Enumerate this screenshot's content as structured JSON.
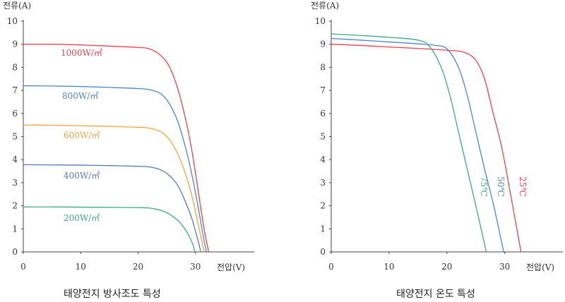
{
  "chart_data": [
    {
      "type": "line",
      "title": "태양전지 방사조도 특성",
      "xlabel": "전압(V)",
      "ylabel": "전류(A)",
      "xlim": [
        0,
        40
      ],
      "ylim": [
        0,
        10
      ],
      "xticks": [
        "0",
        "10",
        "20",
        "30"
      ],
      "yticks": [
        "0",
        "1",
        "2",
        "3",
        "4",
        "5",
        "6",
        "7",
        "8",
        "9",
        "10"
      ],
      "grid": false,
      "series": [
        {
          "name": "1000W/㎡",
          "color": "#e8414e",
          "x": [
            0,
            5,
            10,
            15,
            20,
            22,
            24,
            25.5,
            27,
            28.5,
            29.5,
            30.5,
            31.5,
            32.3
          ],
          "y": [
            9.0,
            9.0,
            8.97,
            8.92,
            8.86,
            8.8,
            8.5,
            8.0,
            7.0,
            5.5,
            4.2,
            2.6,
            1.0,
            0
          ]
        },
        {
          "name": "800W/㎡",
          "color": "#4a86c8",
          "x": [
            0,
            5,
            10,
            15,
            20,
            22,
            24,
            25.5,
            27,
            28.5,
            29.5,
            30.5,
            31.2,
            31.9
          ],
          "y": [
            7.2,
            7.19,
            7.17,
            7.13,
            7.08,
            7.03,
            6.85,
            6.4,
            5.6,
            4.3,
            3.2,
            1.9,
            0.9,
            0
          ]
        },
        {
          "name": "600W/㎡",
          "color": "#f2a23c",
          "x": [
            0,
            5,
            10,
            15,
            20,
            22,
            24,
            25.5,
            27,
            28.5,
            29.5,
            30.3,
            31.0,
            31.5
          ],
          "y": [
            5.5,
            5.49,
            5.47,
            5.44,
            5.4,
            5.36,
            5.2,
            4.85,
            4.2,
            3.2,
            2.3,
            1.4,
            0.6,
            0
          ]
        },
        {
          "name": "400W/㎡",
          "color": "#5878b8",
          "x": [
            0,
            5,
            10,
            15,
            20,
            22,
            24,
            25.5,
            27,
            28.2,
            29.3,
            30.0,
            30.6,
            30.9
          ],
          "y": [
            3.78,
            3.77,
            3.76,
            3.74,
            3.71,
            3.68,
            3.55,
            3.3,
            2.85,
            2.2,
            1.5,
            0.9,
            0.35,
            0
          ]
        },
        {
          "name": "200W/㎡",
          "color": "#3bab7d",
          "x": [
            0,
            5,
            10,
            15,
            20,
            22,
            24,
            25.5,
            27,
            28,
            28.8,
            29.5,
            29.9
          ],
          "y": [
            1.95,
            1.95,
            1.94,
            1.93,
            1.92,
            1.9,
            1.8,
            1.63,
            1.35,
            1.05,
            0.72,
            0.35,
            0
          ]
        }
      ]
    },
    {
      "type": "line",
      "title": "태양전지 온도 특성",
      "xlabel": "전압(V)",
      "ylabel": "전류(A)",
      "xlim": [
        0,
        40
      ],
      "ylim": [
        0,
        10
      ],
      "xticks": [
        "0",
        "10",
        "20",
        "30"
      ],
      "yticks": [
        "0",
        "1",
        "2",
        "3",
        "4",
        "5",
        "6",
        "7",
        "8",
        "9",
        "10"
      ],
      "grid": false,
      "series": [
        {
          "name": "25℃",
          "color": "#e8414e",
          "x": [
            0,
            5,
            10,
            15,
            20,
            23,
            25,
            26.5,
            28,
            29.5,
            31,
            32.3,
            32.8
          ],
          "y": [
            9.0,
            8.95,
            8.88,
            8.82,
            8.74,
            8.65,
            8.3,
            7.5,
            6.0,
            4.5,
            2.5,
            0.7,
            0
          ]
        },
        {
          "name": "50℃",
          "color": "#4a86c8",
          "x": [
            0,
            5,
            10,
            15,
            18,
            20,
            22,
            23.5,
            25,
            26.5,
            28,
            29.3,
            29.8
          ],
          "y": [
            9.25,
            9.18,
            9.1,
            9.02,
            8.95,
            8.8,
            8.0,
            6.8,
            5.2,
            3.6,
            2.1,
            0.6,
            0
          ]
        },
        {
          "name": "75℃",
          "color": "#3bab7d",
          "x": [
            0,
            5,
            10,
            15,
            17,
            19,
            20.5,
            22,
            23.5,
            25,
            26,
            26.8
          ],
          "y": [
            9.45,
            9.38,
            9.3,
            9.18,
            8.9,
            8.0,
            6.8,
            5.2,
            3.6,
            2.0,
            0.9,
            0
          ]
        }
      ]
    }
  ]
}
